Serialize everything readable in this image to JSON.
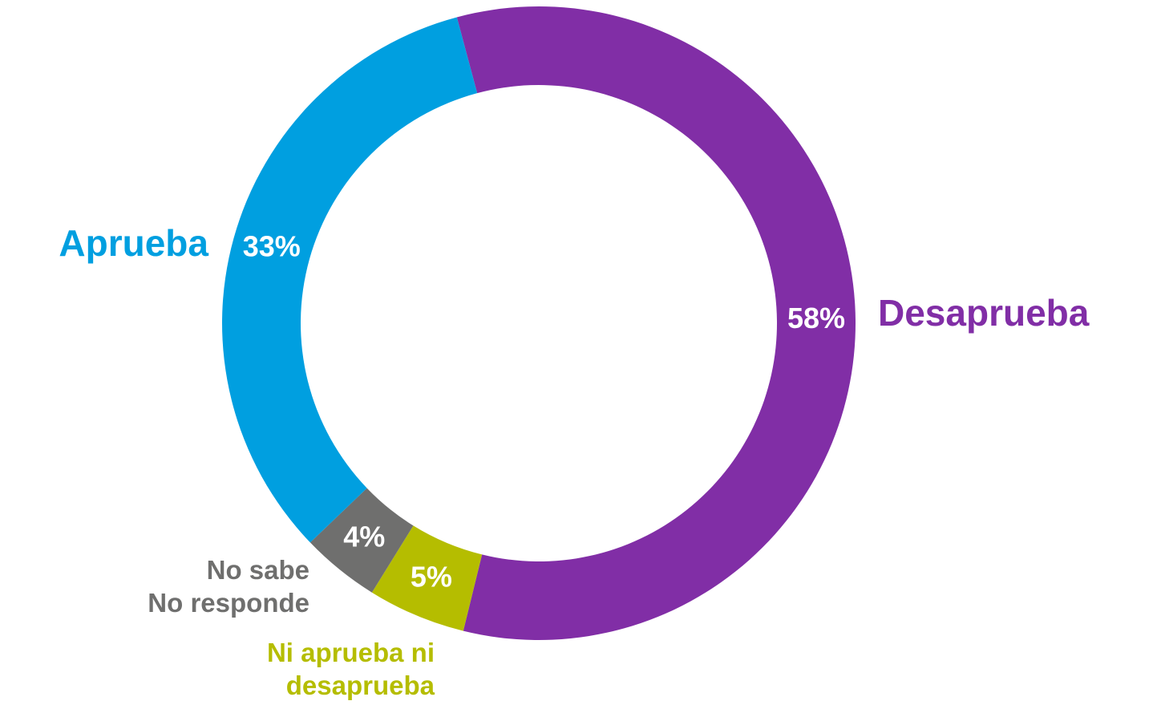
{
  "chart_data": {
    "type": "donut",
    "categories": [
      "Desaprueba",
      "Ni aprueba ni\ndesaprueba",
      "No sabe\nNo responde",
      "Aprueba"
    ],
    "values": [
      58,
      5,
      4,
      33
    ],
    "value_labels": [
      "58%",
      "5%",
      "4%",
      "33%"
    ],
    "colors": [
      "#812ea6",
      "#b5bd00",
      "#6f6f6e",
      "#009fe0"
    ]
  }
}
